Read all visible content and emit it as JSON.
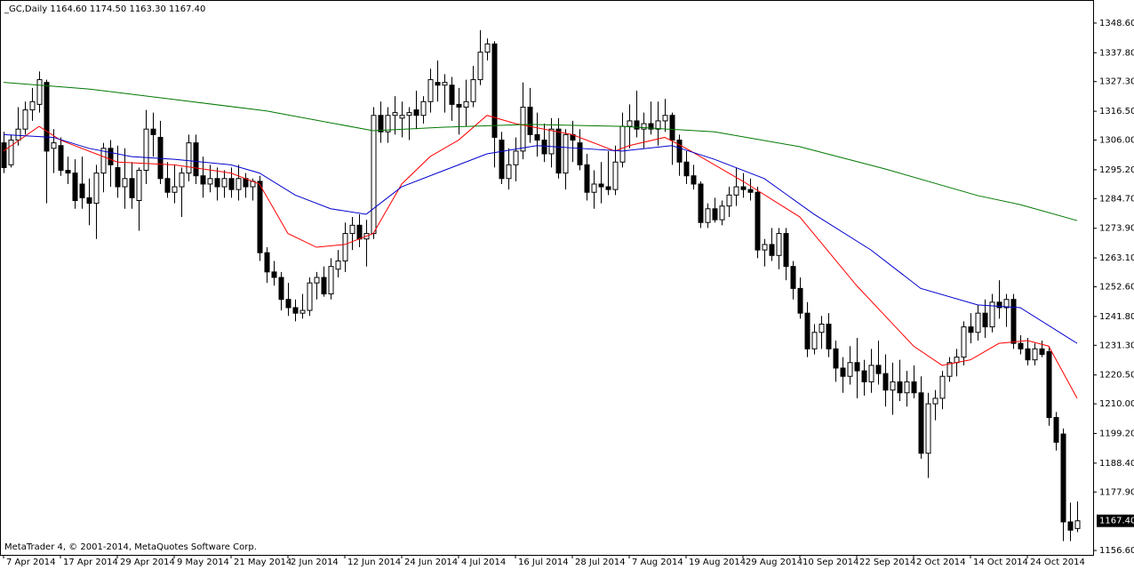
{
  "chart_data": {
    "type": "candlestick",
    "title": "_GC,Daily  1164.60 1174.50 1163.30 1167.40",
    "footer": "MetaTrader 4, © 2001-2014, MetaQuotes Software Corp.",
    "categories": [
      "7 Apr 2014",
      null,
      null,
      null,
      null,
      null,
      null,
      null,
      "17 Apr 2014",
      null,
      null,
      null,
      null,
      null,
      null,
      null,
      "29 Apr 2014",
      null,
      null,
      null,
      null,
      null,
      null,
      null,
      "9 May 2014",
      null,
      null,
      null,
      null,
      null,
      null,
      null,
      "21 May 2014",
      null,
      null,
      null,
      null,
      null,
      null,
      null,
      "2 Jun 2014",
      null,
      null,
      null,
      null,
      null,
      null,
      null,
      "12 Jun 2014",
      null,
      null,
      null,
      null,
      null,
      null,
      null,
      "24 Jun 2014",
      null,
      null,
      null,
      null,
      null,
      null,
      null,
      "4 Jul 2014",
      null,
      null,
      null,
      null,
      null,
      null,
      null,
      "16 Jul 2014",
      null,
      null,
      null,
      null,
      null,
      null,
      null,
      "28 Jul 2014",
      null,
      null,
      null,
      null,
      null,
      null,
      null,
      "7 Aug 2014",
      null,
      null,
      null,
      null,
      null,
      null,
      null,
      "19 Aug 2014",
      null,
      null,
      null,
      null,
      null,
      null,
      null,
      "29 Aug 2014",
      null,
      null,
      null,
      null,
      null,
      null,
      null,
      "10 Sep 2014",
      null,
      null,
      null,
      null,
      null,
      null,
      null,
      "22 Sep 2014",
      null,
      null,
      null,
      null,
      null,
      null,
      null,
      "2 Oct 2014",
      null,
      null,
      null,
      null,
      null,
      null,
      null,
      "14 Oct 2014",
      null,
      null,
      null,
      null,
      null,
      null,
      null,
      "24 Oct 2014",
      null,
      null,
      null,
      null,
      null,
      null,
      null
    ],
    "ohlc": [
      [
        1305,
        1309,
        1294,
        1296
      ],
      [
        1297,
        1308,
        1296,
        1306
      ],
      [
        1306,
        1318,
        1304,
        1310
      ],
      [
        1310,
        1320,
        1308,
        1317
      ],
      [
        1317,
        1325,
        1313,
        1320
      ],
      [
        1319,
        1331,
        1316,
        1328
      ],
      [
        1327,
        1328,
        1283,
        1302
      ],
      [
        1303,
        1310,
        1294,
        1305
      ],
      [
        1304,
        1307,
        1293,
        1295
      ],
      [
        1295,
        1300,
        1290,
        1294
      ],
      [
        1294,
        1299,
        1281,
        1284
      ],
      [
        1290,
        1300,
        1281,
        1285
      ],
      [
        1285,
        1292,
        1275,
        1283
      ],
      [
        1283,
        1297,
        1270,
        1294
      ],
      [
        1294,
        1305,
        1287,
        1303
      ],
      [
        1303,
        1306,
        1289,
        1297
      ],
      [
        1296,
        1304,
        1285,
        1289
      ],
      [
        1289,
        1303,
        1281,
        1292
      ],
      [
        1292,
        1298,
        1281,
        1285
      ],
      [
        1284,
        1296,
        1273,
        1295
      ],
      [
        1295,
        1317,
        1290,
        1310
      ],
      [
        1310,
        1316,
        1300,
        1308
      ],
      [
        1307,
        1313,
        1290,
        1292
      ],
      [
        1292,
        1298,
        1285,
        1287
      ],
      [
        1287,
        1297,
        1283,
        1289
      ],
      [
        1289,
        1296,
        1278,
        1294
      ],
      [
        1294,
        1308,
        1291,
        1305
      ],
      [
        1305,
        1308,
        1290,
        1293
      ],
      [
        1293,
        1300,
        1285,
        1290
      ],
      [
        1290,
        1297,
        1287,
        1292
      ],
      [
        1292,
        1296,
        1284,
        1289
      ],
      [
        1289,
        1295,
        1285,
        1292
      ],
      [
        1292,
        1296,
        1285,
        1288
      ],
      [
        1288,
        1297,
        1284,
        1292
      ],
      [
        1292,
        1294,
        1285,
        1289
      ],
      [
        1289,
        1292,
        1284,
        1291
      ],
      [
        1291,
        1293,
        1262,
        1265
      ],
      [
        1265,
        1267,
        1254,
        1258
      ],
      [
        1258,
        1262,
        1253,
        1256
      ],
      [
        1256,
        1258,
        1244,
        1248
      ],
      [
        1248,
        1254,
        1242,
        1245
      ],
      [
        1245,
        1248,
        1240,
        1243
      ],
      [
        1243,
        1250,
        1241,
        1244
      ],
      [
        1244,
        1256,
        1242,
        1254
      ],
      [
        1254,
        1258,
        1248,
        1256
      ],
      [
        1256,
        1260,
        1249,
        1250
      ],
      [
        1250,
        1263,
        1248,
        1260
      ],
      [
        1259,
        1266,
        1256,
        1262
      ],
      [
        1262,
        1276,
        1258,
        1272
      ],
      [
        1272,
        1278,
        1266,
        1275
      ],
      [
        1275,
        1279,
        1267,
        1270
      ],
      [
        1270,
        1277,
        1260,
        1272
      ],
      [
        1272,
        1318,
        1270,
        1315
      ],
      [
        1315,
        1320,
        1305,
        1309
      ],
      [
        1309,
        1318,
        1305,
        1315
      ],
      [
        1315,
        1322,
        1308,
        1316
      ],
      [
        1314,
        1320,
        1307,
        1315
      ],
      [
        1315,
        1318,
        1306,
        1316
      ],
      [
        1317,
        1324,
        1310,
        1315
      ],
      [
        1315,
        1322,
        1312,
        1320
      ],
      [
        1320,
        1332,
        1316,
        1328
      ],
      [
        1327,
        1335,
        1320,
        1326
      ],
      [
        1326,
        1330,
        1316,
        1327
      ],
      [
        1326,
        1329,
        1313,
        1319
      ],
      [
        1319,
        1325,
        1308,
        1318
      ],
      [
        1318,
        1328,
        1311,
        1320
      ],
      [
        1320,
        1333,
        1318,
        1328
      ],
      [
        1328,
        1346,
        1326,
        1338
      ],
      [
        1338,
        1343,
        1335,
        1341
      ],
      [
        1341,
        1342,
        1296,
        1307
      ],
      [
        1306,
        1309,
        1290,
        1292
      ],
      [
        1292,
        1303,
        1288,
        1297
      ],
      [
        1297,
        1307,
        1291,
        1302
      ],
      [
        1302,
        1327,
        1299,
        1318
      ],
      [
        1318,
        1325,
        1305,
        1308
      ],
      [
        1308,
        1316,
        1300,
        1306
      ],
      [
        1306,
        1312,
        1298,
        1301
      ],
      [
        1301,
        1314,
        1296,
        1310
      ],
      [
        1310,
        1314,
        1292,
        1294
      ],
      [
        1294,
        1310,
        1288,
        1308
      ],
      [
        1308,
        1313,
        1298,
        1306
      ],
      [
        1305,
        1310,
        1295,
        1297
      ],
      [
        1297,
        1301,
        1284,
        1287
      ],
      [
        1287,
        1295,
        1281,
        1290
      ],
      [
        1290,
        1298,
        1283,
        1289
      ],
      [
        1289,
        1302,
        1286,
        1288
      ],
      [
        1288,
        1304,
        1286,
        1298
      ],
      [
        1298,
        1316,
        1296,
        1311
      ],
      [
        1311,
        1319,
        1303,
        1313
      ],
      [
        1313,
        1324,
        1307,
        1310
      ],
      [
        1310,
        1316,
        1303,
        1312
      ],
      [
        1312,
        1320,
        1308,
        1310
      ],
      [
        1310,
        1320,
        1304,
        1313
      ],
      [
        1313,
        1321,
        1309,
        1315
      ],
      [
        1315,
        1316,
        1297,
        1306
      ],
      [
        1306,
        1308,
        1293,
        1298
      ],
      [
        1298,
        1302,
        1290,
        1293
      ],
      [
        1293,
        1297,
        1288,
        1290
      ],
      [
        1290,
        1291,
        1274,
        1276
      ],
      [
        1276,
        1283,
        1274,
        1281
      ],
      [
        1281,
        1285,
        1276,
        1277
      ],
      [
        1277,
        1284,
        1275,
        1282
      ],
      [
        1282,
        1289,
        1278,
        1286
      ],
      [
        1286,
        1296,
        1282,
        1289
      ],
      [
        1289,
        1294,
        1285,
        1288
      ],
      [
        1288,
        1292,
        1284,
        1287
      ],
      [
        1287,
        1289,
        1263,
        1266
      ],
      [
        1266,
        1270,
        1260,
        1268
      ],
      [
        1268,
        1274,
        1262,
        1264
      ],
      [
        1264,
        1274,
        1259,
        1272
      ],
      [
        1272,
        1274,
        1255,
        1260
      ],
      [
        1260,
        1262,
        1248,
        1252
      ],
      [
        1252,
        1256,
        1241,
        1243
      ],
      [
        1243,
        1247,
        1227,
        1230
      ],
      [
        1230,
        1239,
        1228,
        1236
      ],
      [
        1236,
        1242,
        1230,
        1239
      ],
      [
        1239,
        1243,
        1227,
        1230
      ],
      [
        1230,
        1233,
        1218,
        1223
      ],
      [
        1223,
        1227,
        1214,
        1220
      ],
      [
        1220,
        1231,
        1217,
        1225
      ],
      [
        1225,
        1234,
        1212,
        1222
      ],
      [
        1222,
        1226,
        1213,
        1218
      ],
      [
        1218,
        1230,
        1214,
        1224
      ],
      [
        1224,
        1233,
        1217,
        1221
      ],
      [
        1221,
        1228,
        1209,
        1215
      ],
      [
        1215,
        1225,
        1206,
        1218
      ],
      [
        1218,
        1226,
        1211,
        1214
      ],
      [
        1214,
        1222,
        1209,
        1218
      ],
      [
        1218,
        1224,
        1212,
        1214
      ],
      [
        1214,
        1220,
        1190,
        1192
      ],
      [
        1192,
        1214,
        1183,
        1210
      ],
      [
        1210,
        1215,
        1204,
        1212
      ],
      [
        1212,
        1222,
        1208,
        1220
      ],
      [
        1220,
        1227,
        1218,
        1225
      ],
      [
        1225,
        1230,
        1220,
        1227
      ],
      [
        1227,
        1240,
        1224,
        1238
      ],
      [
        1238,
        1243,
        1232,
        1236
      ],
      [
        1236,
        1246,
        1233,
        1243
      ],
      [
        1243,
        1248,
        1234,
        1238
      ],
      [
        1238,
        1250,
        1236,
        1247
      ],
      [
        1247,
        1255,
        1241,
        1245
      ],
      [
        1245,
        1250,
        1238,
        1248
      ],
      [
        1248,
        1250,
        1230,
        1232
      ],
      [
        1232,
        1235,
        1228,
        1230
      ],
      [
        1230,
        1234,
        1224,
        1226
      ],
      [
        1226,
        1232,
        1224,
        1230
      ],
      [
        1230,
        1233,
        1227,
        1228
      ],
      [
        1229,
        1231,
        1202,
        1205
      ],
      [
        1205,
        1207,
        1193,
        1196
      ],
      [
        1199,
        1201,
        1160,
        1167
      ],
      [
        1167,
        1174,
        1160,
        1164
      ],
      [
        1164.6,
        1174.5,
        1163.3,
        1167.4
      ]
    ],
    "up_color": "#ffffff",
    "down_color": "#000000",
    "series": [
      {
        "color": "#ff0000",
        "x": [
          0,
          5,
          8,
          16,
          24,
          32,
          36,
          40,
          44,
          48,
          52,
          56,
          60,
          64,
          68,
          72,
          80,
          86,
          88,
          93,
          96,
          104,
          112,
          120,
          128,
          132,
          136,
          140,
          144,
          147,
          151
        ],
        "values": [
          1302,
          1311,
          1306,
          1298,
          1297,
          1294,
          1290,
          1272,
          1267,
          1268,
          1272,
          1290,
          1300,
          1306,
          1315,
          1312,
          1308,
          1302,
          1304,
          1307,
          1303,
          1291,
          1278,
          1253,
          1231,
          1224,
          1226,
          1232,
          1233,
          1231,
          1212
        ]
      },
      {
        "color": "#0000cd",
        "x": [
          0,
          7,
          12,
          18,
          24,
          32,
          36,
          41,
          46,
          51,
          56,
          62,
          68,
          75,
          81,
          87,
          94,
          100,
          107,
          114,
          122,
          129,
          137,
          143,
          151
        ],
        "values": [
          1308,
          1307,
          1303,
          1300,
          1299,
          1297,
          1294,
          1286,
          1281,
          1279,
          1289,
          1295,
          1301,
          1304,
          1303,
          1302,
          1304,
          1299,
          1292,
          1279,
          1266,
          1252,
          1246,
          1245,
          1232
        ]
      },
      {
        "color": "#007800",
        "x": [
          0,
          12,
          24,
          37,
          52,
          62,
          74,
          87,
          100,
          112,
          124,
          137,
          143,
          151
        ],
        "values": [
          1327,
          1324.6,
          1320.8,
          1316.6,
          1309.4,
          1310.7,
          1311.7,
          1311,
          1309,
          1303.6,
          1295.5,
          1285.8,
          1282.5,
          1276.7
        ]
      }
    ],
    "ylim": [
      1155,
      1357
    ],
    "yticks": [
      {
        "value": 1348.6,
        "label": "1348.60"
      },
      {
        "value": 1337.8,
        "label": "1337.80"
      },
      {
        "value": 1327.3,
        "label": "1327.30"
      },
      {
        "value": 1316.5,
        "label": "1316.50"
      },
      {
        "value": 1306,
        "label": "1306.00"
      },
      {
        "value": 1295.2,
        "label": "1295.20"
      },
      {
        "value": 1284.7,
        "label": "1284.70"
      },
      {
        "value": 1273.9,
        "label": "1273.90"
      },
      {
        "value": 1263.1,
        "label": "1263.10"
      },
      {
        "value": 1252.6,
        "label": "1252.60"
      },
      {
        "value": 1241.8,
        "label": "1241.80"
      },
      {
        "value": 1231.3,
        "label": "1231.30"
      },
      {
        "value": 1220.5,
        "label": "1220.50"
      },
      {
        "value": 1210,
        "label": "1210.00"
      },
      {
        "value": 1199.2,
        "label": "1199.20"
      },
      {
        "value": 1188.4,
        "label": "1188.40"
      },
      {
        "value": 1177.9,
        "label": "1177.90"
      },
      {
        "value": 1156.6,
        "label": "1156.60"
      }
    ],
    "last_price": {
      "value": 1167.4,
      "label": "1167.40"
    },
    "grid": false
  }
}
